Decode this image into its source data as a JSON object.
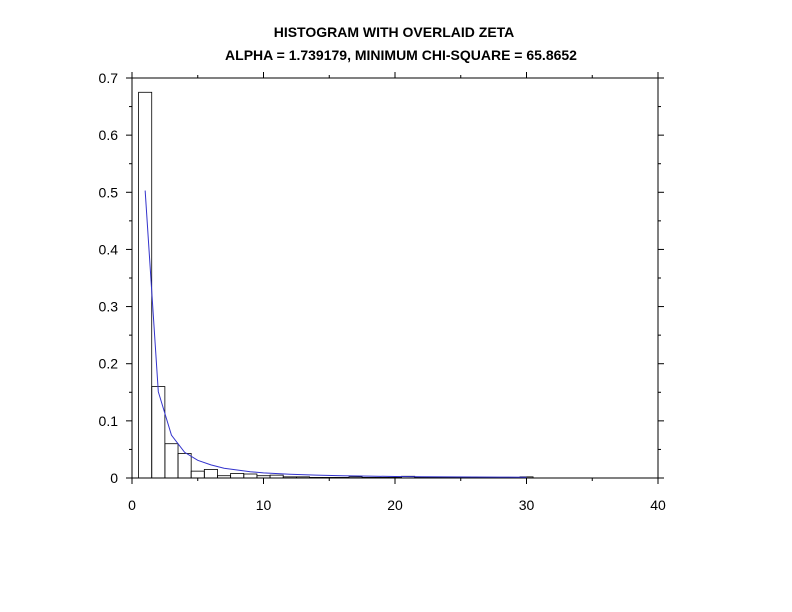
{
  "chart_data": {
    "type": "bar",
    "title": "HISTOGRAM WITH OVERLAID ZETA",
    "subtitle": "ALPHA = 1.739179, MINIMUM CHI-SQUARE = 65.8652",
    "xlabel": "",
    "ylabel": "",
    "xlim": [
      0,
      40
    ],
    "ylim": [
      0,
      0.7
    ],
    "x_ticks": [
      "0",
      "10",
      "20",
      "30",
      "40"
    ],
    "y_ticks": [
      "0",
      "0.1",
      "0.2",
      "0.3",
      "0.4",
      "0.5",
      "0.6",
      "0.7"
    ],
    "grid": false,
    "bin_width": 1,
    "bins": [
      {
        "x": 1,
        "y": 0.675
      },
      {
        "x": 2,
        "y": 0.16
      },
      {
        "x": 3,
        "y": 0.06
      },
      {
        "x": 4,
        "y": 0.043
      },
      {
        "x": 5,
        "y": 0.012
      },
      {
        "x": 6,
        "y": 0.015
      },
      {
        "x": 7,
        "y": 0.004
      },
      {
        "x": 8,
        "y": 0.008
      },
      {
        "x": 9,
        "y": 0.007
      },
      {
        "x": 10,
        "y": 0.004
      },
      {
        "x": 11,
        "y": 0.005
      },
      {
        "x": 12,
        "y": 0.002
      },
      {
        "x": 13,
        "y": 0.002
      },
      {
        "x": 14,
        "y": 0.001
      },
      {
        "x": 15,
        "y": 0.001
      },
      {
        "x": 16,
        "y": 0.001
      },
      {
        "x": 17,
        "y": 0.002
      },
      {
        "x": 18,
        "y": 0.001
      },
      {
        "x": 19,
        "y": 0.001
      },
      {
        "x": 20,
        "y": 0.001
      },
      {
        "x": 21,
        "y": 0.003
      },
      {
        "x": 22,
        "y": 0.001
      },
      {
        "x": 23,
        "y": 0.001
      },
      {
        "x": 24,
        "y": 0.001
      },
      {
        "x": 25,
        "y": 0.001
      },
      {
        "x": 26,
        "y": 0.001
      },
      {
        "x": 27,
        "y": 0.001
      },
      {
        "x": 28,
        "y": 0.001
      },
      {
        "x": 29,
        "y": 0.001
      },
      {
        "x": 30,
        "y": 0.002
      }
    ],
    "curve": {
      "color": "#3333cc",
      "x": [
        1,
        2,
        3,
        4,
        5,
        6,
        7,
        8,
        9,
        10,
        12,
        14,
        16,
        18,
        20,
        22,
        24,
        26,
        28,
        30
      ],
      "y": [
        0.503,
        0.151,
        0.075,
        0.045,
        0.031,
        0.023,
        0.017,
        0.014,
        0.011,
        0.009,
        0.0066,
        0.005,
        0.0039,
        0.0032,
        0.0027,
        0.0022,
        0.0019,
        0.0017,
        0.0015,
        0.0013
      ]
    },
    "bar_color": "#000000"
  }
}
